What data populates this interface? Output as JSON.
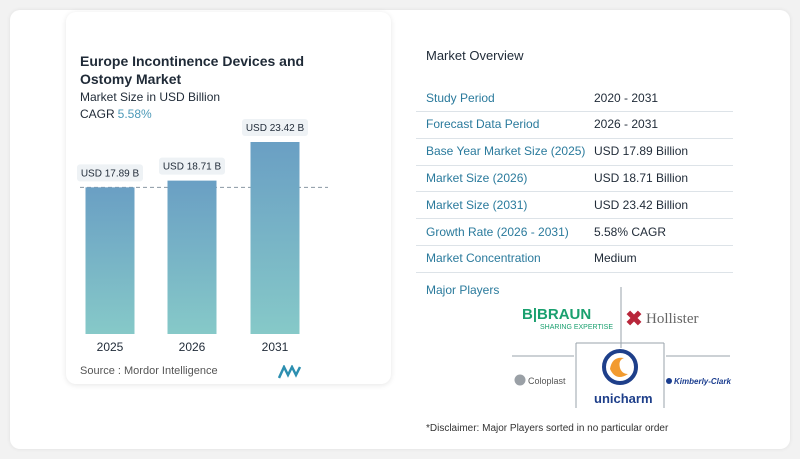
{
  "chart_data": {
    "type": "bar",
    "title": "Europe Incontinence Devices and Ostomy Market",
    "subtitle": "Market Size in USD Billion",
    "cagr_label": "CAGR",
    "cagr_value": "5.58%",
    "categories": [
      "2025",
      "2026",
      "2031"
    ],
    "values": [
      17.89,
      18.71,
      23.42
    ],
    "data_labels": [
      "USD 17.89 B",
      "USD 18.71 B",
      "USD 23.42 B"
    ],
    "ylim": [
      0,
      24
    ],
    "grid": false,
    "reference_line_value": 17.89,
    "colors": {
      "bar_top": "#6a9fc4",
      "bar_bottom": "#86c9c8"
    }
  },
  "source": "Source :  Mordor Intelligence",
  "overview": {
    "title": "Market Overview",
    "rows": [
      {
        "label": "Study Period",
        "value": "2020 - 2031"
      },
      {
        "label": "Forecast Data Period",
        "value": "2026 - 2031"
      },
      {
        "label": "Base Year Market Size (2025)",
        "value": "USD 17.89 Billion"
      },
      {
        "label": "Market Size (2026)",
        "value": "USD 18.71 Billion"
      },
      {
        "label": "Market Size (2031)",
        "value": "USD 23.42 Billion"
      },
      {
        "label": "Growth Rate (2026 - 2031)",
        "value": "5.58% CAGR"
      },
      {
        "label": "Market Concentration",
        "value": "Medium"
      }
    ]
  },
  "players": {
    "title": "Major Players",
    "logos": [
      "B|BRAUN SHARING EXPERTISE",
      "Hollister",
      "Coloplast",
      "unicharm",
      "Kimberly-Clark"
    ],
    "disclaimer": "*Disclaimer: Major Players sorted in no particular order"
  }
}
